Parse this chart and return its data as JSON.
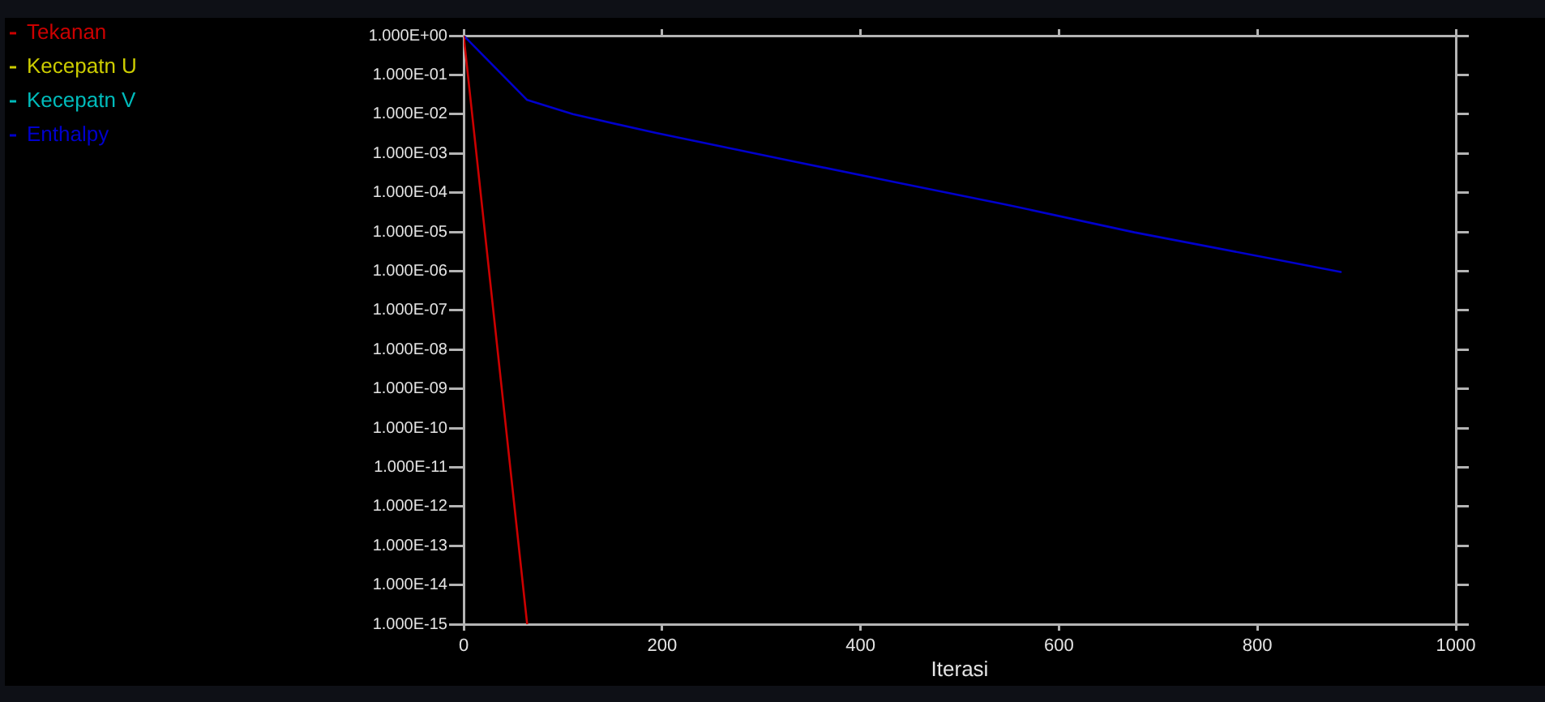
{
  "chart_data": {
    "type": "line",
    "xlabel": "Iterasi",
    "xlim": [
      0,
      1000
    ],
    "xticks": [
      0,
      200,
      400,
      600,
      800,
      1000
    ],
    "ylim": [
      1e-15,
      1
    ],
    "yticks": [
      {
        "value": 1e-15,
        "label": "1.000E-15"
      },
      {
        "value": 1e-14,
        "label": "1.000E-14"
      },
      {
        "value": 1e-13,
        "label": "1.000E-13"
      },
      {
        "value": 1e-12,
        "label": "1.000E-12"
      },
      {
        "value": 1e-11,
        "label": "1.000E-11"
      },
      {
        "value": 1e-10,
        "label": "1.000E-10"
      },
      {
        "value": 1e-09,
        "label": "1.000E-09"
      },
      {
        "value": 1e-08,
        "label": "1.000E-08"
      },
      {
        "value": 1e-07,
        "label": "1.000E-07"
      },
      {
        "value": 1e-06,
        "label": "1.000E-06"
      },
      {
        "value": 1e-05,
        "label": "1.000E-05"
      },
      {
        "value": 0.0001,
        "label": "1.000E-04"
      },
      {
        "value": 0.001,
        "label": "1.000E-03"
      },
      {
        "value": 0.01,
        "label": "1.000E-02"
      },
      {
        "value": 0.1,
        "label": "1.000E-01"
      },
      {
        "value": 1,
        "label": "1.000E+00"
      }
    ],
    "log": true,
    "legend": "left",
    "marker": "none",
    "series": [
      {
        "name": "Tekanan",
        "color": "#cc0000",
        "x": [
          0,
          64
        ],
        "values": [
          1,
          1e-15
        ]
      },
      {
        "name": "Kecepatn U",
        "color": "#cccc00"
      },
      {
        "name": "Kecepatn V",
        "color": "#00bbbb"
      },
      {
        "name": "Enthalpy",
        "color": "#0000cc",
        "x": [
          0,
          64,
          110,
          194,
          328,
          437,
          546,
          676,
          884
        ],
        "values": [
          1,
          0.023,
          0.01,
          0.0033,
          0.00066,
          0.00018,
          5e-05,
          9.7e-06,
          9.5e-07
        ]
      }
    ]
  }
}
